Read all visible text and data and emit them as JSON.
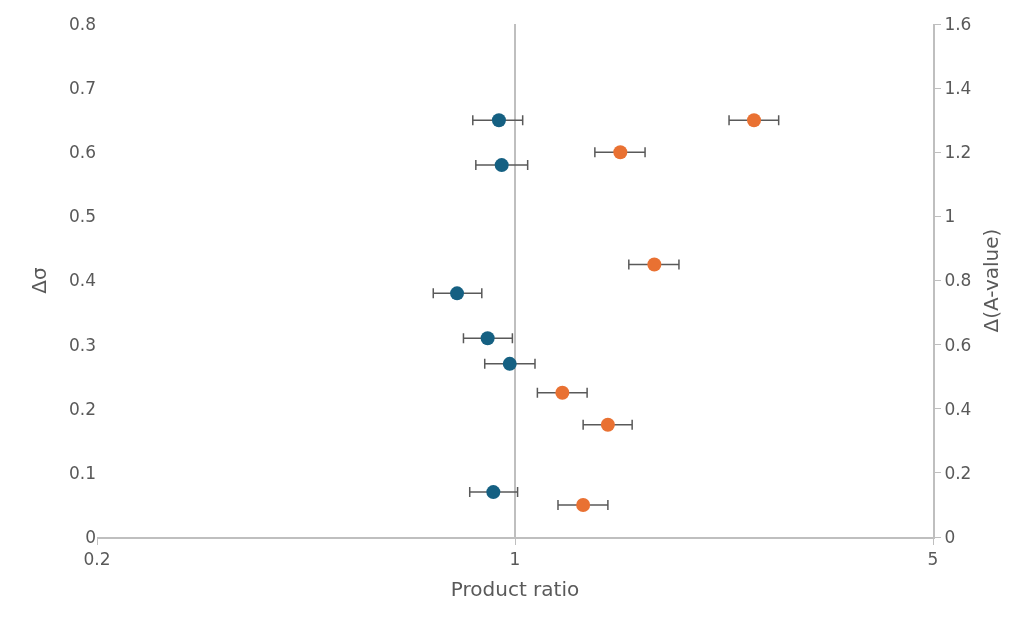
{
  "chart_data": {
    "type": "scatter",
    "xlabel": "Product ratio",
    "ylabel": "Δσ",
    "y2label": "Δ(A-value)",
    "log": "x",
    "marker": "circle",
    "xlim": [
      0.2,
      5
    ],
    "xticks": [
      0.2,
      1,
      5
    ],
    "ylim": [
      0,
      0.8
    ],
    "yticks": [
      0,
      0.1,
      0.2,
      0.3,
      0.4,
      0.5,
      0.6,
      0.7,
      0.8
    ],
    "y2lim": [
      0,
      1.6
    ],
    "y2ticks": [
      0,
      0.2,
      0.4,
      0.6,
      0.8,
      1,
      1.2,
      1.4,
      1.6
    ],
    "ref_lines": [
      {
        "axis": "x",
        "value": 1,
        "color": "#bfbfbf"
      }
    ],
    "series": [
      {
        "color": "#156082",
        "x": [
          0.94,
          0.95,
          0.8,
          0.9,
          0.98,
          0.92
        ],
        "values": [
          0.65,
          0.58,
          0.38,
          0.31,
          0.27,
          0.07
        ],
        "xerrors": [
          [
            0.85,
            1.03
          ],
          [
            0.86,
            1.05
          ],
          [
            0.73,
            0.88
          ],
          [
            0.82,
            0.99
          ],
          [
            0.89,
            1.08
          ],
          [
            0.84,
            1.01
          ]
        ]
      },
      {
        "color": "#e97132",
        "axis": "y2",
        "x": [
          2.51,
          1.5,
          1.71,
          1.2,
          1.43,
          1.3
        ],
        "values": [
          1.3,
          1.2,
          0.85,
          0.45,
          0.35,
          0.1
        ],
        "xerrors": [
          [
            2.28,
            2.76
          ],
          [
            1.36,
            1.65
          ],
          [
            1.55,
            1.88
          ],
          [
            1.09,
            1.32
          ],
          [
            1.3,
            1.57
          ],
          [
            1.18,
            1.43
          ]
        ]
      }
    ]
  }
}
